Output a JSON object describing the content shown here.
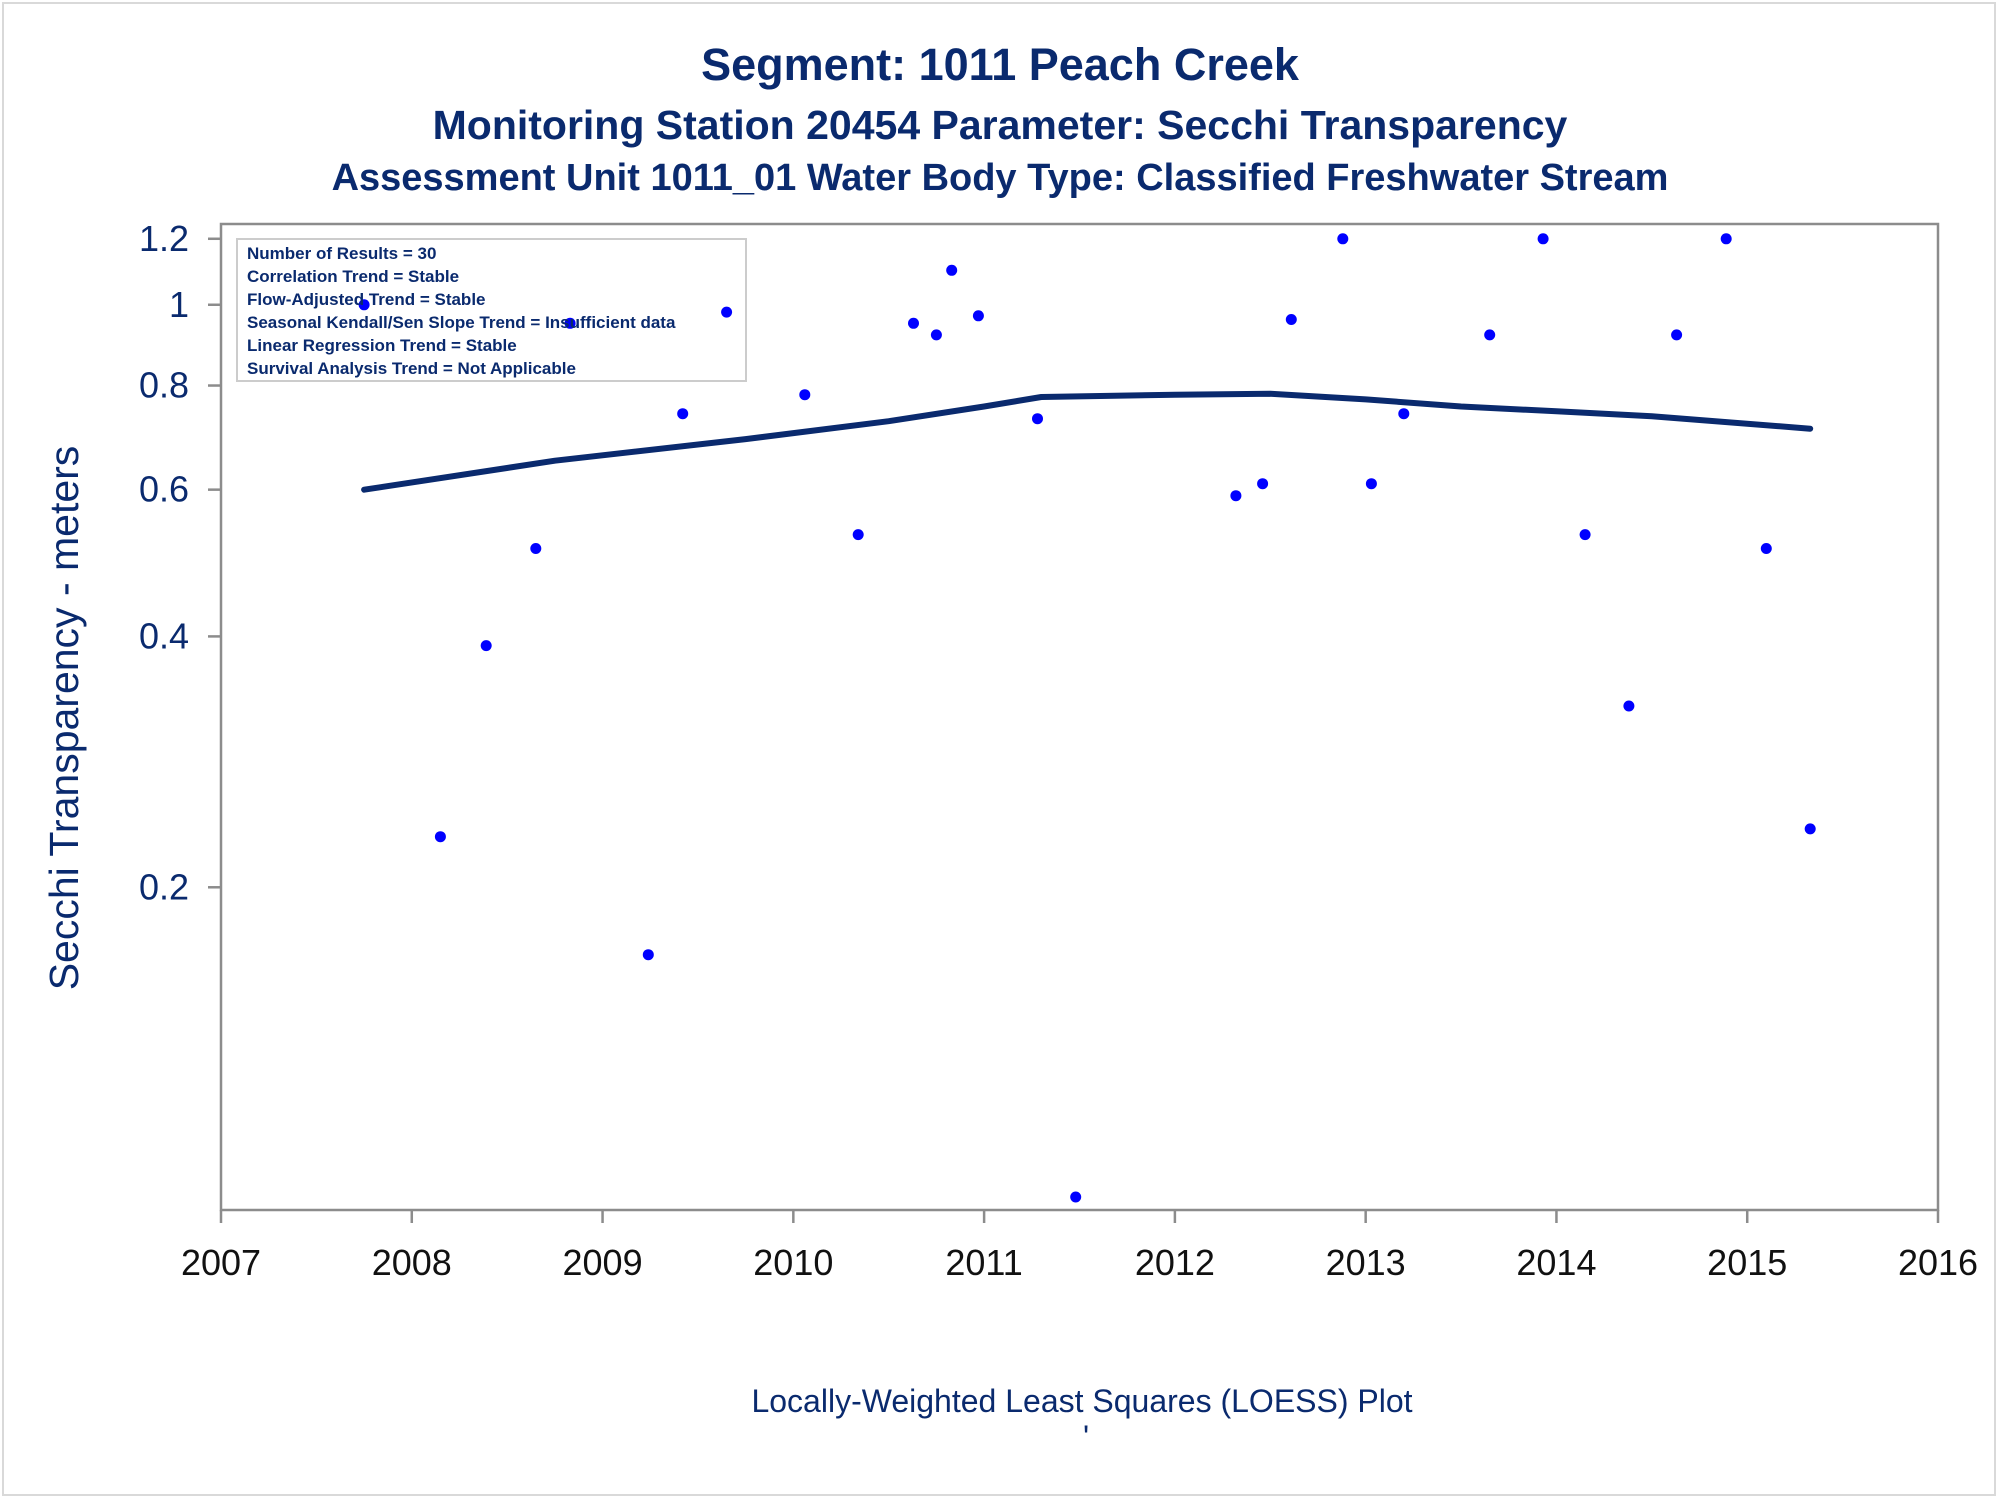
{
  "header": {
    "title": "Segment: 1011  Peach Creek",
    "subtitle": "Monitoring Station 20454 Parameter: Secchi Transparency",
    "subtitle2": "Assessment Unit 1011_01   Water Body Type: Classified Freshwater Stream"
  },
  "footer": {
    "caption": "Locally-Weighted Least Squares (LOESS) Plot",
    "mark": "'"
  },
  "stats_box": {
    "lines": [
      "Number of Results = 30",
      "Correlation Trend = Stable",
      "Flow-Adjusted Trend = Stable",
      "Seasonal Kendall/Sen Slope Trend = Insufficient data",
      "Linear Regression Trend = Stable",
      "Survival Analysis Trend = Not Applicable"
    ]
  },
  "chart_data": {
    "type": "scatter",
    "title": "Segment: 1011  Peach Creek",
    "xlabel": "",
    "ylabel": "Secchi Transparency - meters",
    "xlim": [
      2007,
      2016
    ],
    "x_ticks": [
      2007,
      2008,
      2009,
      2010,
      2011,
      2012,
      2013,
      2014,
      2015,
      2016
    ],
    "y_scale": "log",
    "ylim": [
      0.082,
      1.25
    ],
    "y_ticks": [
      0.2,
      0.4,
      0.6,
      0.8,
      1,
      1.2
    ],
    "y_tick_labels": [
      "0.2",
      "0.4",
      "0.6",
      "0.8",
      "1",
      "1.2"
    ],
    "grid": false,
    "point_color": "#0000ff",
    "line_color": "#0a2a6e",
    "series": [
      {
        "type": "scatter",
        "points": [
          [
            2007.75,
            1.0
          ],
          [
            2008.15,
            0.23
          ],
          [
            2008.39,
            0.39
          ],
          [
            2008.65,
            0.51
          ],
          [
            2008.83,
            0.95
          ],
          [
            2009.24,
            0.166
          ],
          [
            2009.42,
            0.74
          ],
          [
            2009.65,
            0.98
          ],
          [
            2010.06,
            0.78
          ],
          [
            2010.34,
            0.53
          ],
          [
            2010.63,
            0.95
          ],
          [
            2010.75,
            0.92
          ],
          [
            2010.83,
            1.1
          ],
          [
            2010.97,
            0.97
          ],
          [
            2011.28,
            0.73
          ],
          [
            2011.48,
            0.085
          ],
          [
            2012.32,
            0.59
          ],
          [
            2012.46,
            0.61
          ],
          [
            2012.61,
            0.96
          ],
          [
            2012.88,
            1.2
          ],
          [
            2013.03,
            0.61
          ],
          [
            2013.2,
            0.74
          ],
          [
            2013.65,
            0.92
          ],
          [
            2013.93,
            1.2
          ],
          [
            2014.15,
            0.53
          ],
          [
            2014.38,
            0.33
          ],
          [
            2014.63,
            0.92
          ],
          [
            2014.89,
            1.2
          ],
          [
            2015.1,
            0.51
          ],
          [
            2015.33,
            0.235
          ]
        ]
      },
      {
        "type": "line",
        "points": [
          [
            2007.75,
            0.6
          ],
          [
            2008.75,
            0.65
          ],
          [
            2009.75,
            0.69
          ],
          [
            2010.5,
            0.725
          ],
          [
            2011.0,
            0.755
          ],
          [
            2011.3,
            0.775
          ],
          [
            2012.0,
            0.78
          ],
          [
            2012.5,
            0.782
          ],
          [
            2013.0,
            0.77
          ],
          [
            2013.5,
            0.755
          ],
          [
            2014.0,
            0.745
          ],
          [
            2014.5,
            0.735
          ],
          [
            2015.33,
            0.71
          ]
        ]
      }
    ]
  }
}
